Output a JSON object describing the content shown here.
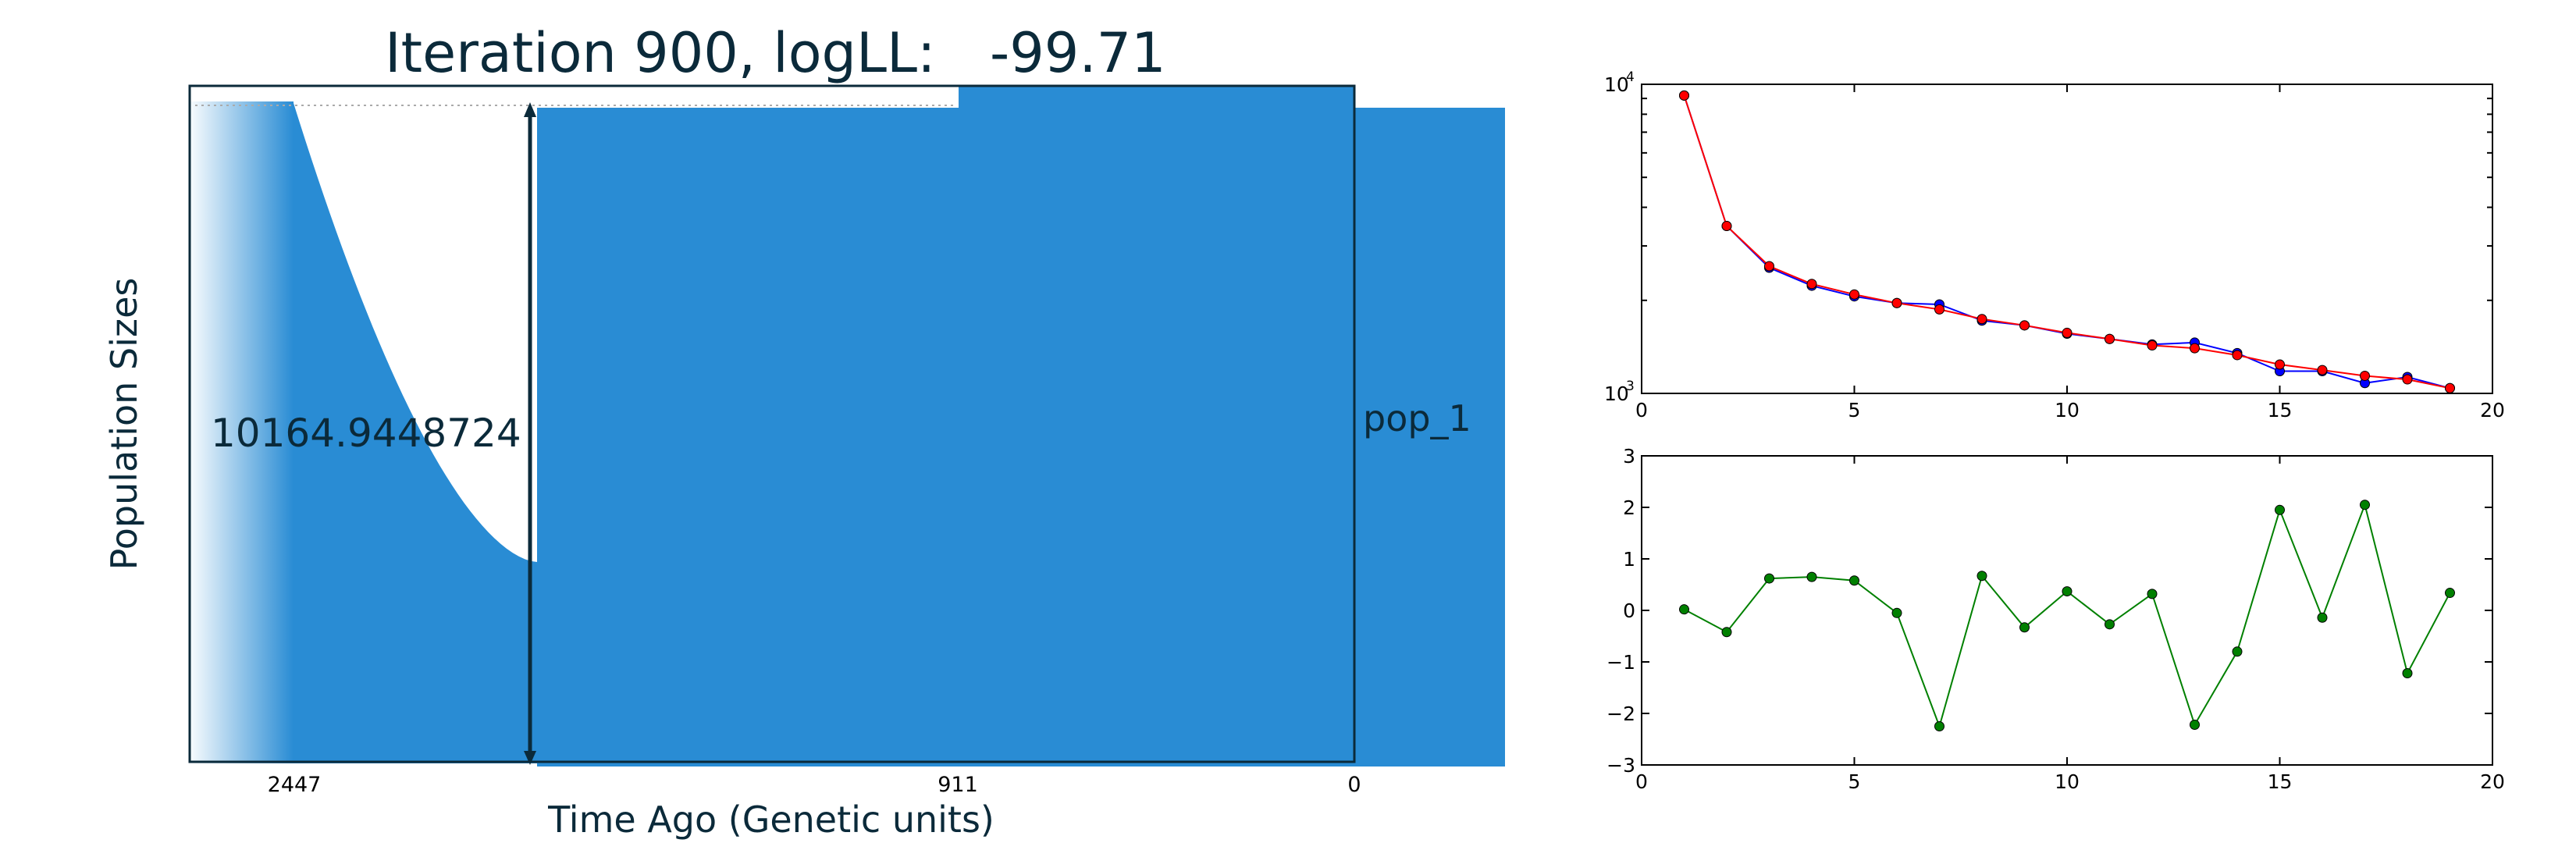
{
  "chart_data": [
    {
      "type": "area",
      "title": "Iteration 900, logLL:",
      "loglik": "-99.71",
      "ylabel": "Population Sizes",
      "xlabel": "Time Ago (Genetic units)",
      "x_ticks": [
        "2447",
        "911",
        "0"
      ],
      "population_label": "pop_1",
      "size_annotation": "10164.9448724",
      "segments": [
        {
          "from": 2447,
          "to": 0,
          "shape": "exponential",
          "size_start": 10164.9,
          "size_end": 3300
        },
        {
          "from": 911,
          "to": 0,
          "shape": "constant",
          "size": 10164.9
        }
      ],
      "colors": {
        "fill": "#298cd4",
        "text": "#0b2a3a"
      }
    },
    {
      "type": "line",
      "yscale": "log",
      "xlim": [
        0,
        20
      ],
      "ylim": [
        1000,
        10000
      ],
      "x_ticks": [
        "0",
        "5",
        "10",
        "15",
        "20"
      ],
      "y_ticks": [
        "10",
        "10"
      ],
      "y_tick_exponents": [
        "4",
        "3"
      ],
      "series": [
        {
          "color": "#0000ff",
          "x": [
            1,
            2,
            3,
            4,
            5,
            6,
            7,
            8,
            9,
            10,
            11,
            12,
            13,
            14,
            15,
            16,
            17,
            18,
            19
          ],
          "values": [
            9200,
            3480,
            2550,
            2230,
            2060,
            1960,
            1940,
            1720,
            1660,
            1560,
            1500,
            1440,
            1460,
            1350,
            1180,
            1180,
            1080,
            1130,
            1040
          ]
        },
        {
          "color": "#ff0000",
          "x": [
            1,
            2,
            3,
            4,
            5,
            6,
            7,
            8,
            9,
            10,
            11,
            12,
            13,
            14,
            15,
            16,
            17,
            18,
            19
          ],
          "values": [
            9200,
            3480,
            2580,
            2260,
            2090,
            1960,
            1870,
            1740,
            1660,
            1570,
            1500,
            1430,
            1400,
            1330,
            1240,
            1190,
            1140,
            1110,
            1040
          ]
        }
      ]
    },
    {
      "type": "line",
      "xlim": [
        0,
        20
      ],
      "ylim": [
        -3,
        3
      ],
      "x_ticks": [
        "0",
        "5",
        "10",
        "15",
        "20"
      ],
      "y_ticks": [
        "3",
        "2",
        "1",
        "0",
        "−1",
        "−2",
        "−3"
      ],
      "series": [
        {
          "color": "#008000",
          "x": [
            1,
            2,
            3,
            4,
            5,
            6,
            7,
            8,
            9,
            10,
            11,
            12,
            13,
            14,
            15,
            16,
            17,
            18,
            19
          ],
          "values": [
            0.02,
            -0.42,
            0.62,
            0.65,
            0.58,
            -0.05,
            -2.25,
            0.67,
            -0.33,
            0.37,
            -0.27,
            0.32,
            -2.22,
            -0.8,
            1.95,
            -0.14,
            2.05,
            -1.22,
            0.34
          ]
        }
      ]
    }
  ]
}
